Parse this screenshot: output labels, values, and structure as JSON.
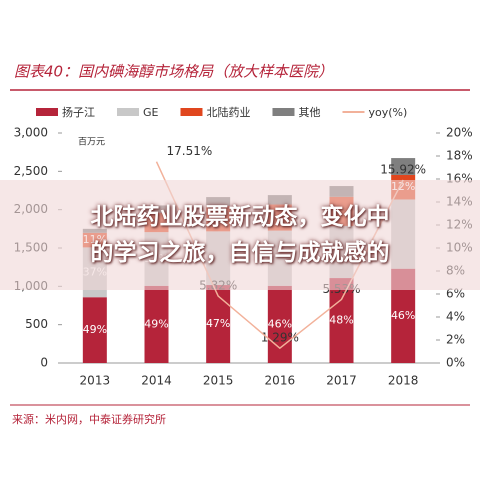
{
  "chart_data": {
    "type": "stacked-bar-line",
    "title": "图表40：国内碘海醇市场格局（放大样本医院）",
    "unit_note": "百万元",
    "source": "来源：米内网，中泰证券研究所",
    "overlay": [
      "北陆药业股票新动态，变化中",
      "的学习之旅，自信与成就感的"
    ],
    "categories": [
      "2013",
      "2014",
      "2015",
      "2016",
      "2017",
      "2018"
    ],
    "series": [
      {
        "name": "扬子江",
        "color": "#b5243a",
        "values": [
          858,
          1007,
          1017,
          1007,
          1108,
          1230
        ],
        "share_labels": [
          "49%",
          "49%",
          "47%",
          "46%",
          "48%",
          "46%"
        ]
      },
      {
        "name": "GE",
        "color": "#c8c8c8",
        "values": [
          650,
          700,
          700,
          720,
          680,
          903
        ],
        "share_labels": [
          "37%",
          "34%",
          null,
          null,
          null,
          null
        ]
      },
      {
        "name": "北陆药业",
        "color": "#e0461e",
        "values": [
          190,
          250,
          330,
          340,
          380,
          320
        ],
        "share_labels": [
          "11%",
          null,
          null,
          null,
          null,
          "12%"
        ]
      },
      {
        "name": "其他",
        "color": "#7f7f7f",
        "values": [
          52,
          98,
          117,
          123,
          140,
          220
        ]
      },
      {
        "name": "yoy(%)",
        "color": "#f2b19a",
        "type": "line",
        "axis": "y2",
        "values": [
          null,
          17.51,
          5.82,
          1.29,
          5.53,
          15.92
        ],
        "value_labels": [
          null,
          "17.51%",
          "5.82%",
          "1.29%",
          "5.53%",
          "15.92%"
        ]
      }
    ],
    "ylim": [
      0,
      3000
    ],
    "yticks": [
      {
        "value": 0,
        "label": "0"
      },
      {
        "value": 500,
        "label": "500"
      },
      {
        "value": 1000,
        "label": "1,000"
      },
      {
        "value": 1500,
        "label": "1,500"
      },
      {
        "value": 2000,
        "label": "2,000"
      },
      {
        "value": 2500,
        "label": "2,500"
      },
      {
        "value": 3000,
        "label": "3,000"
      }
    ],
    "y2lim": [
      0,
      20
    ],
    "y2ticks": [
      {
        "value": 0,
        "label": "0%"
      },
      {
        "value": 2,
        "label": "2%"
      },
      {
        "value": 4,
        "label": "4%"
      },
      {
        "value": 6,
        "label": "6%"
      },
      {
        "value": 8,
        "label": "8%"
      },
      {
        "value": 10,
        "label": "10%"
      },
      {
        "value": 12,
        "label": "12%"
      },
      {
        "value": 14,
        "label": "14%"
      },
      {
        "value": 16,
        "label": "16%"
      },
      {
        "value": 18,
        "label": "18%"
      },
      {
        "value": 20,
        "label": "20%"
      }
    ]
  }
}
